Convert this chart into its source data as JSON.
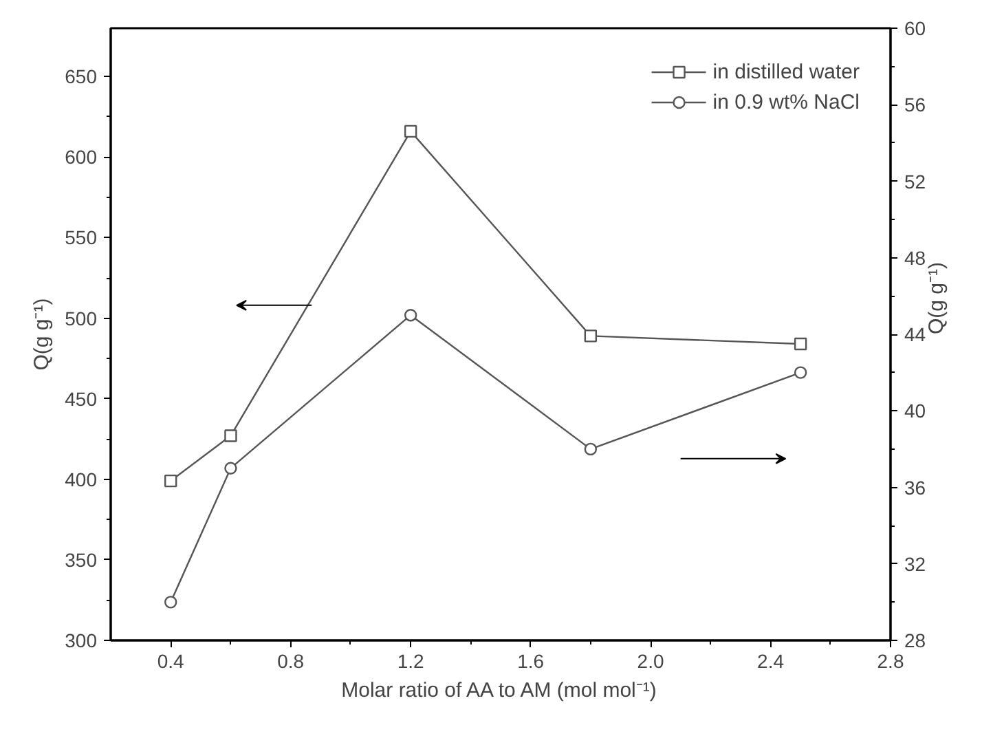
{
  "chart_data": {
    "type": "line",
    "xlabel": "Molar ratio of AA to AM (mol mol⁻¹)",
    "ylabel": "Q(g g⁻¹)",
    "y2label": "Q(g g⁻¹)",
    "x": [
      0.4,
      0.6,
      1.2,
      1.8,
      2.5
    ],
    "series": [
      {
        "name": "in distilled water",
        "color": "#555555",
        "values": [
          399,
          427,
          616,
          489,
          484
        ],
        "marker": "square"
      },
      {
        "name": "in 0.9 wt% NaCl",
        "color": "#555555",
        "values": [
          30,
          37,
          45,
          38,
          42
        ],
        "marker": "circle",
        "axis": "y2"
      }
    ],
    "xlim": [
      0.2,
      2.8
    ],
    "xticks": [
      0.4,
      0.8,
      1.2,
      1.6,
      {
        "value": 2.0,
        "label": "2.0"
      },
      2.4,
      2.8
    ],
    "ylim": [
      300,
      680
    ],
    "yticks": [
      300,
      350,
      400,
      450,
      500,
      550,
      600,
      650
    ],
    "y2lim": [
      28,
      60
    ],
    "y2ticks": [
      28,
      32,
      36,
      40,
      44,
      48,
      52,
      56,
      60
    ],
    "legend": "top right",
    "grid": false,
    "line_style": "solid"
  }
}
